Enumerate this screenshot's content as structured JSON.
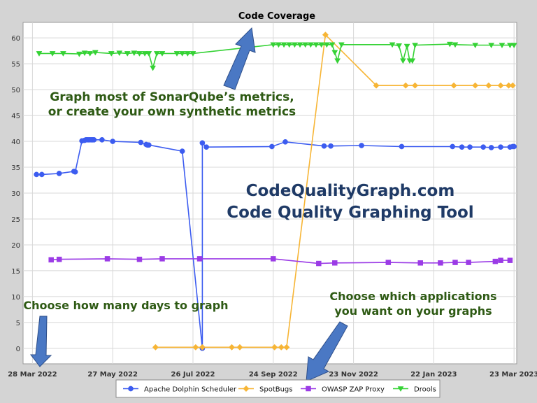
{
  "chart_data": {
    "type": "line",
    "title": "Code Coverage",
    "x_ticks": [
      "28 Mar 2022",
      "27 May 2022",
      "26 Jul 2022",
      "24 Sep 2022",
      "23 Nov 2022",
      "22 Jan 2023",
      "23 Mar 2023"
    ],
    "xlim": [
      "2022-03-21",
      "2023-03-25"
    ],
    "ylim": [
      -3,
      63
    ],
    "y_ticks": [
      0,
      5,
      10,
      15,
      20,
      25,
      30,
      35,
      40,
      45,
      50,
      55,
      60
    ],
    "grid": true,
    "legend_position": "bottom",
    "series": [
      {
        "name": "Apache Dolphin Scheduler",
        "color": "#3c5cf0",
        "marker": "circle",
        "points": [
          [
            "2022-03-31",
            33.6
          ],
          [
            "2022-04-04",
            33.6
          ],
          [
            "2022-04-17",
            33.8
          ],
          [
            "2022-04-28",
            34.2
          ],
          [
            "2022-04-29",
            34.1
          ],
          [
            "2022-05-04",
            40.1
          ],
          [
            "2022-05-06",
            40.2
          ],
          [
            "2022-05-07",
            40.3
          ],
          [
            "2022-05-08",
            40.3
          ],
          [
            "2022-05-09",
            40.3
          ],
          [
            "2022-05-10",
            40.3
          ],
          [
            "2022-05-11",
            40.3
          ],
          [
            "2022-05-12",
            40.3
          ],
          [
            "2022-05-13",
            40.3
          ],
          [
            "2022-05-19",
            40.3
          ],
          [
            "2022-05-27",
            40.0
          ],
          [
            "2022-06-17",
            39.8
          ],
          [
            "2022-06-21",
            39.4
          ],
          [
            "2022-06-22",
            39.3
          ],
          [
            "2022-06-23",
            39.3
          ],
          [
            "2022-07-18",
            38.1
          ],
          [
            "2022-08-02",
            0.0
          ],
          [
            "2022-08-02",
            39.7
          ],
          [
            "2022-08-05",
            38.9
          ],
          [
            "2022-09-23",
            39.0
          ],
          [
            "2022-10-03",
            39.9
          ],
          [
            "2022-11-01",
            39.1
          ],
          [
            "2022-11-06",
            39.1
          ],
          [
            "2022-11-29",
            39.2
          ],
          [
            "2022-12-29",
            39.0
          ],
          [
            "2023-02-05",
            39.0
          ],
          [
            "2023-02-12",
            38.9
          ],
          [
            "2023-02-18",
            38.9
          ],
          [
            "2023-02-28",
            38.9
          ],
          [
            "2023-03-06",
            38.8
          ],
          [
            "2023-03-13",
            38.9
          ],
          [
            "2023-03-20",
            38.9
          ],
          [
            "2023-03-22",
            39.0
          ],
          [
            "2023-03-23",
            39.0
          ]
        ]
      },
      {
        "name": "SpotBugs",
        "color": "#f7b535",
        "marker": "diamond",
        "points": [
          [
            "2022-06-28",
            0.2
          ],
          [
            "2022-07-28",
            0.2
          ],
          [
            "2022-08-02",
            0.2
          ],
          [
            "2022-08-24",
            0.2
          ],
          [
            "2022-08-30",
            0.2
          ],
          [
            "2022-09-25",
            0.2
          ],
          [
            "2022-09-30",
            0.2
          ],
          [
            "2022-10-04",
            0.2
          ],
          [
            "2022-11-02",
            60.6
          ],
          [
            "2022-12-10",
            50.8
          ],
          [
            "2023-01-01",
            50.8
          ],
          [
            "2023-01-08",
            50.8
          ],
          [
            "2023-02-06",
            50.8
          ],
          [
            "2023-02-22",
            50.8
          ],
          [
            "2023-03-04",
            50.8
          ],
          [
            "2023-03-13",
            50.8
          ],
          [
            "2023-03-19",
            50.8
          ],
          [
            "2023-03-22",
            50.8
          ]
        ]
      },
      {
        "name": "OWASP ZAP Proxy",
        "color": "#9b3be6",
        "marker": "square",
        "points": [
          [
            "2022-04-11",
            17.1
          ],
          [
            "2022-04-17",
            17.2
          ],
          [
            "2022-05-23",
            17.3
          ],
          [
            "2022-06-16",
            17.2
          ],
          [
            "2022-07-03",
            17.3
          ],
          [
            "2022-07-31",
            17.3
          ],
          [
            "2022-09-24",
            17.3
          ],
          [
            "2022-10-28",
            16.4
          ],
          [
            "2022-11-09",
            16.5
          ],
          [
            "2022-12-19",
            16.6
          ],
          [
            "2023-01-12",
            16.5
          ],
          [
            "2023-01-27",
            16.5
          ],
          [
            "2023-02-07",
            16.6
          ],
          [
            "2023-02-17",
            16.6
          ],
          [
            "2023-03-09",
            16.8
          ],
          [
            "2023-03-13",
            17.0
          ],
          [
            "2023-03-20",
            17.0
          ]
        ]
      },
      {
        "name": "Drools",
        "color": "#35d235",
        "marker": "triangle-down",
        "points": [
          [
            "2022-04-02",
            57.0
          ],
          [
            "2022-04-12",
            57.0
          ],
          [
            "2022-04-20",
            57.0
          ],
          [
            "2022-05-02",
            56.9
          ],
          [
            "2022-05-06",
            57.1
          ],
          [
            "2022-05-10",
            57.0
          ],
          [
            "2022-05-14",
            57.2
          ],
          [
            "2022-05-26",
            57.0
          ],
          [
            "2022-06-01",
            57.1
          ],
          [
            "2022-06-07",
            57.0
          ],
          [
            "2022-06-12",
            57.1
          ],
          [
            "2022-06-16",
            57.0
          ],
          [
            "2022-06-20",
            57.0
          ],
          [
            "2022-06-23",
            57.0
          ],
          [
            "2022-06-26",
            54.2
          ],
          [
            "2022-06-29",
            57.0
          ],
          [
            "2022-07-03",
            57.0
          ],
          [
            "2022-07-14",
            57.0
          ],
          [
            "2022-07-18",
            57.0
          ],
          [
            "2022-07-22",
            57.0
          ],
          [
            "2022-07-26",
            57.0
          ],
          [
            "2022-09-24",
            58.7
          ],
          [
            "2022-09-28",
            58.7
          ],
          [
            "2022-10-02",
            58.7
          ],
          [
            "2022-10-06",
            58.7
          ],
          [
            "2022-10-10",
            58.7
          ],
          [
            "2022-10-14",
            58.7
          ],
          [
            "2022-10-18",
            58.7
          ],
          [
            "2022-10-22",
            58.7
          ],
          [
            "2022-10-26",
            58.7
          ],
          [
            "2022-10-30",
            58.7
          ],
          [
            "2022-11-03",
            58.7
          ],
          [
            "2022-11-07",
            58.7
          ],
          [
            "2022-11-09",
            57.2
          ],
          [
            "2022-11-11",
            55.6
          ],
          [
            "2022-11-14",
            58.7
          ],
          [
            "2022-12-22",
            58.7
          ],
          [
            "2022-12-27",
            58.5
          ],
          [
            "2022-12-30",
            55.6
          ],
          [
            "2023-01-02",
            58.4
          ],
          [
            "2023-01-04",
            55.6
          ],
          [
            "2023-01-06",
            55.6
          ],
          [
            "2023-01-08",
            58.6
          ],
          [
            "2023-02-03",
            58.8
          ],
          [
            "2023-02-07",
            58.7
          ],
          [
            "2023-02-22",
            58.6
          ],
          [
            "2023-03-06",
            58.6
          ],
          [
            "2023-03-14",
            58.6
          ],
          [
            "2023-03-20",
            58.6
          ],
          [
            "2023-03-23",
            58.6
          ]
        ]
      }
    ]
  },
  "annotations": {
    "metrics_line1": "Graph most of SonarQube’s metrics,",
    "metrics_line2": "or create your own synthetic metrics",
    "brand_line1": "CodeQualityGraph.com",
    "brand_line2": "Code Quality Graphing Tool",
    "days_hint": "Choose how many days to graph",
    "apps_line1": "Choose which applications",
    "apps_line2": "you want on your graphs"
  },
  "colors": {
    "annotation_text": "#2e5a14",
    "brand_text": "#1f3a66",
    "arrow_fill": "#4a78c4",
    "plot_background": "#ffffff",
    "grid": "#d8d8d8"
  }
}
